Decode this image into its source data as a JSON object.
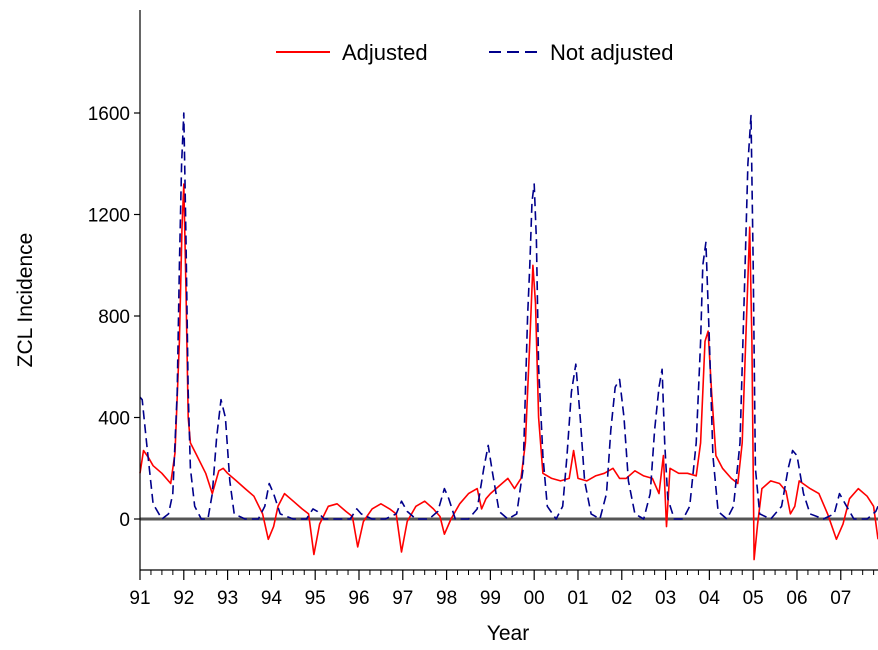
{
  "chart_data": {
    "type": "line",
    "title": "",
    "xlabel": "Year",
    "ylabel": "ZCL Incidence",
    "xlim": [
      1991.0,
      2007.85
    ],
    "ylim": [
      -250,
      2000
    ],
    "y_ticks": [
      0,
      400,
      800,
      1200,
      1600
    ],
    "x_ticks": [
      {
        "value": 1991,
        "label": "91"
      },
      {
        "value": 1992,
        "label": "92"
      },
      {
        "value": 1993,
        "label": "93"
      },
      {
        "value": 1994,
        "label": "94"
      },
      {
        "value": 1995,
        "label": "95"
      },
      {
        "value": 1996,
        "label": "96"
      },
      {
        "value": 1997,
        "label": "97"
      },
      {
        "value": 1998,
        "label": "98"
      },
      {
        "value": 1999,
        "label": "99"
      },
      {
        "value": 2000,
        "label": "00"
      },
      {
        "value": 2001,
        "label": "01"
      },
      {
        "value": 2002,
        "label": "02"
      },
      {
        "value": 2003,
        "label": "03"
      },
      {
        "value": 2004,
        "label": "04"
      },
      {
        "value": 2005,
        "label": "05"
      },
      {
        "value": 2006,
        "label": "06"
      },
      {
        "value": 2007,
        "label": "07"
      }
    ],
    "zero_line": true,
    "legend_position": "top-center",
    "series": [
      {
        "name": "Adjusted",
        "color": "#ff0000",
        "style": "solid",
        "points": [
          [
            1991.0,
            180
          ],
          [
            1991.08,
            270
          ],
          [
            1991.2,
            240
          ],
          [
            1991.3,
            210
          ],
          [
            1991.5,
            180
          ],
          [
            1991.7,
            140
          ],
          [
            1991.8,
            260
          ],
          [
            1991.9,
            700
          ],
          [
            1991.96,
            1150
          ],
          [
            1992.0,
            1320
          ],
          [
            1992.05,
            900
          ],
          [
            1992.1,
            400
          ],
          [
            1992.15,
            300
          ],
          [
            1992.3,
            250
          ],
          [
            1992.5,
            180
          ],
          [
            1992.65,
            100
          ],
          [
            1992.8,
            190
          ],
          [
            1992.9,
            200
          ],
          [
            1993.0,
            180
          ],
          [
            1993.2,
            150
          ],
          [
            1993.4,
            120
          ],
          [
            1993.6,
            90
          ],
          [
            1993.8,
            20
          ],
          [
            1993.93,
            -80
          ],
          [
            1994.05,
            -30
          ],
          [
            1994.15,
            50
          ],
          [
            1994.3,
            100
          ],
          [
            1994.5,
            70
          ],
          [
            1994.7,
            40
          ],
          [
            1994.85,
            20
          ],
          [
            1994.97,
            -140
          ],
          [
            1995.1,
            -20
          ],
          [
            1995.3,
            50
          ],
          [
            1995.5,
            60
          ],
          [
            1995.7,
            30
          ],
          [
            1995.85,
            10
          ],
          [
            1995.97,
            -110
          ],
          [
            1996.1,
            -10
          ],
          [
            1996.3,
            40
          ],
          [
            1996.5,
            60
          ],
          [
            1996.7,
            40
          ],
          [
            1996.85,
            20
          ],
          [
            1996.97,
            -130
          ],
          [
            1997.1,
            -10
          ],
          [
            1997.3,
            50
          ],
          [
            1997.5,
            70
          ],
          [
            1997.7,
            40
          ],
          [
            1997.85,
            10
          ],
          [
            1997.95,
            -60
          ],
          [
            1998.1,
            0
          ],
          [
            1998.3,
            60
          ],
          [
            1998.5,
            100
          ],
          [
            1998.7,
            120
          ],
          [
            1998.8,
            40
          ],
          [
            1998.9,
            80
          ],
          [
            1999.0,
            100
          ],
          [
            1999.2,
            130
          ],
          [
            1999.4,
            160
          ],
          [
            1999.55,
            120
          ],
          [
            1999.7,
            160
          ],
          [
            1999.8,
            300
          ],
          [
            1999.9,
            700
          ],
          [
            1999.97,
            1000
          ],
          [
            2000.03,
            850
          ],
          [
            2000.1,
            400
          ],
          [
            2000.2,
            180
          ],
          [
            2000.4,
            160
          ],
          [
            2000.6,
            150
          ],
          [
            2000.8,
            160
          ],
          [
            2000.9,
            270
          ],
          [
            2001.0,
            160
          ],
          [
            2001.2,
            150
          ],
          [
            2001.4,
            170
          ],
          [
            2001.6,
            180
          ],
          [
            2001.8,
            200
          ],
          [
            2001.95,
            160
          ],
          [
            2002.1,
            160
          ],
          [
            2002.3,
            190
          ],
          [
            2002.5,
            170
          ],
          [
            2002.7,
            160
          ],
          [
            2002.85,
            100
          ],
          [
            2002.95,
            250
          ],
          [
            2003.02,
            -30
          ],
          [
            2003.1,
            200
          ],
          [
            2003.3,
            180
          ],
          [
            2003.5,
            180
          ],
          [
            2003.7,
            170
          ],
          [
            2003.8,
            300
          ],
          [
            2003.9,
            700
          ],
          [
            2003.97,
            740
          ],
          [
            2004.05,
            500
          ],
          [
            2004.15,
            250
          ],
          [
            2004.3,
            200
          ],
          [
            2004.5,
            160
          ],
          [
            2004.65,
            140
          ],
          [
            2004.75,
            300
          ],
          [
            2004.85,
            800
          ],
          [
            2004.92,
            1150
          ],
          [
            2004.97,
            700
          ],
          [
            2005.02,
            -160
          ],
          [
            2005.1,
            -20
          ],
          [
            2005.2,
            120
          ],
          [
            2005.4,
            150
          ],
          [
            2005.6,
            140
          ],
          [
            2005.75,
            110
          ],
          [
            2005.85,
            20
          ],
          [
            2005.95,
            50
          ],
          [
            2006.05,
            150
          ],
          [
            2006.3,
            120
          ],
          [
            2006.5,
            100
          ],
          [
            2006.7,
            20
          ],
          [
            2006.9,
            -80
          ],
          [
            2007.05,
            -20
          ],
          [
            2007.2,
            80
          ],
          [
            2007.4,
            120
          ],
          [
            2007.6,
            90
          ],
          [
            2007.75,
            50
          ],
          [
            2007.85,
            -80
          ]
        ]
      },
      {
        "name": "Not adjusted",
        "color": "#00008b",
        "style": "dashed",
        "points": [
          [
            1991.0,
            480
          ],
          [
            1991.05,
            470
          ],
          [
            1991.15,
            300
          ],
          [
            1991.3,
            60
          ],
          [
            1991.5,
            0
          ],
          [
            1991.65,
            20
          ],
          [
            1991.75,
            100
          ],
          [
            1991.85,
            500
          ],
          [
            1991.9,
            1000
          ],
          [
            1991.95,
            1400
          ],
          [
            1992.0,
            1600
          ],
          [
            1992.05,
            1100
          ],
          [
            1992.1,
            500
          ],
          [
            1992.15,
            200
          ],
          [
            1992.25,
            50
          ],
          [
            1992.4,
            0
          ],
          [
            1992.55,
            0
          ],
          [
            1992.65,
            100
          ],
          [
            1992.75,
            320
          ],
          [
            1992.85,
            470
          ],
          [
            1992.95,
            400
          ],
          [
            1993.05,
            150
          ],
          [
            1993.15,
            20
          ],
          [
            1993.4,
            0
          ],
          [
            1993.7,
            0
          ],
          [
            1993.85,
            50
          ],
          [
            1993.95,
            140
          ],
          [
            1994.05,
            100
          ],
          [
            1994.2,
            20
          ],
          [
            1994.5,
            0
          ],
          [
            1994.8,
            0
          ],
          [
            1994.95,
            40
          ],
          [
            1995.05,
            30
          ],
          [
            1995.2,
            0
          ],
          [
            1995.5,
            0
          ],
          [
            1995.8,
            0
          ],
          [
            1995.95,
            40
          ],
          [
            1996.05,
            20
          ],
          [
            1996.3,
            0
          ],
          [
            1996.6,
            0
          ],
          [
            1996.85,
            20
          ],
          [
            1996.97,
            70
          ],
          [
            1997.1,
            30
          ],
          [
            1997.3,
            0
          ],
          [
            1997.6,
            0
          ],
          [
            1997.8,
            30
          ],
          [
            1997.95,
            120
          ],
          [
            1998.05,
            80
          ],
          [
            1998.2,
            0
          ],
          [
            1998.5,
            0
          ],
          [
            1998.7,
            40
          ],
          [
            1998.85,
            200
          ],
          [
            1998.95,
            290
          ],
          [
            1999.05,
            180
          ],
          [
            1999.2,
            30
          ],
          [
            1999.4,
            0
          ],
          [
            1999.6,
            20
          ],
          [
            1999.75,
            200
          ],
          [
            1999.85,
            800
          ],
          [
            1999.9,
            1000
          ],
          [
            1999.95,
            1250
          ],
          [
            2000.0,
            1320
          ],
          [
            2000.05,
            1100
          ],
          [
            2000.1,
            600
          ],
          [
            2000.2,
            250
          ],
          [
            2000.3,
            50
          ],
          [
            2000.5,
            0
          ],
          [
            2000.65,
            50
          ],
          [
            2000.75,
            250
          ],
          [
            2000.85,
            500
          ],
          [
            2000.95,
            610
          ],
          [
            2001.05,
            400
          ],
          [
            2001.15,
            150
          ],
          [
            2001.3,
            20
          ],
          [
            2001.5,
            0
          ],
          [
            2001.65,
            100
          ],
          [
            2001.75,
            350
          ],
          [
            2001.85,
            520
          ],
          [
            2001.95,
            550
          ],
          [
            2002.05,
            400
          ],
          [
            2002.15,
            150
          ],
          [
            2002.3,
            20
          ],
          [
            2002.5,
            0
          ],
          [
            2002.65,
            100
          ],
          [
            2002.75,
            350
          ],
          [
            2002.85,
            520
          ],
          [
            2002.92,
            590
          ],
          [
            2002.98,
            300
          ],
          [
            2003.05,
            80
          ],
          [
            2003.2,
            0
          ],
          [
            2003.4,
            0
          ],
          [
            2003.55,
            50
          ],
          [
            2003.7,
            300
          ],
          [
            2003.8,
            700
          ],
          [
            2003.85,
            1000
          ],
          [
            2003.92,
            1090
          ],
          [
            2004.0,
            700
          ],
          [
            2004.08,
            250
          ],
          [
            2004.2,
            30
          ],
          [
            2004.4,
            0
          ],
          [
            2004.55,
            50
          ],
          [
            2004.7,
            300
          ],
          [
            2004.8,
            900
          ],
          [
            2004.88,
            1400
          ],
          [
            2004.95,
            1590
          ],
          [
            2005.0,
            1000
          ],
          [
            2005.05,
            200
          ],
          [
            2005.15,
            20
          ],
          [
            2005.4,
            0
          ],
          [
            2005.65,
            50
          ],
          [
            2005.8,
            200
          ],
          [
            2005.9,
            270
          ],
          [
            2006.0,
            250
          ],
          [
            2006.15,
            100
          ],
          [
            2006.3,
            20
          ],
          [
            2006.6,
            0
          ],
          [
            2006.85,
            20
          ],
          [
            2006.97,
            100
          ],
          [
            2007.1,
            60
          ],
          [
            2007.3,
            0
          ],
          [
            2007.6,
            0
          ],
          [
            2007.8,
            30
          ],
          [
            2007.85,
            50
          ]
        ]
      }
    ]
  }
}
